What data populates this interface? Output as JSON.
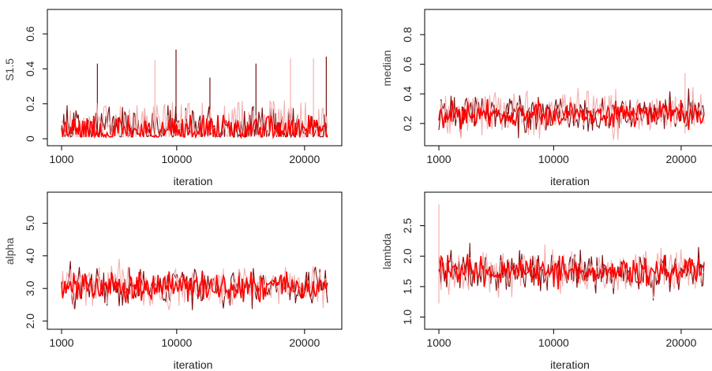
{
  "colors": {
    "chain_dark": "#7a1010",
    "chain_red": "#ff0000",
    "chain_light": "#f4b0b0",
    "frame": "#000000"
  },
  "chart_data": [
    {
      "type": "line",
      "ylabel": "S1.5",
      "xlabel": "iteration",
      "xlim": [
        1000,
        21800
      ],
      "ylim": [
        -0.04,
        0.74
      ],
      "xticks": [
        1000,
        10000,
        20000
      ],
      "xtick_labels": [
        "1000",
        "10000",
        "20000"
      ],
      "yticks": [
        0,
        0.2,
        0.4,
        0.6
      ],
      "ytick_labels": [
        "0",
        "0.2",
        "0.4",
        "0.6"
      ],
      "series": [
        {
          "color": "#7a1010",
          "trace": {
            "center": 0.06,
            "spread": 0.07,
            "floor": 0.01,
            "ceiling": 0.51,
            "skew": true
          },
          "spikes": [
            [
              3800,
              0.43
            ],
            [
              9950,
              0.51
            ],
            [
              16200,
              0.43
            ],
            [
              21700,
              0.47
            ],
            [
              12600,
              0.35
            ]
          ]
        },
        {
          "color": "#f4b0b0",
          "trace": {
            "center": 0.08,
            "spread": 0.08,
            "floor": 0.01,
            "ceiling": 0.5,
            "skew": true
          },
          "spikes": [
            [
              8300,
              0.45
            ],
            [
              18900,
              0.46
            ],
            [
              20700,
              0.46
            ]
          ]
        },
        {
          "color": "#ff0000",
          "trace": {
            "center": 0.05,
            "spread": 0.05,
            "floor": 0.01,
            "ceiling": 0.3,
            "skew": true
          },
          "spikes": []
        }
      ]
    },
    {
      "type": "line",
      "ylabel": "median",
      "xlabel": "iteration",
      "xlim": [
        1000,
        21800
      ],
      "ylim": [
        0.05,
        0.97
      ],
      "xticks": [
        1000,
        10000,
        20000
      ],
      "xtick_labels": [
        "1000",
        "10000",
        "20000"
      ],
      "yticks": [
        0.2,
        0.4,
        0.6,
        0.8
      ],
      "ytick_labels": [
        "0.2",
        "0.4",
        "0.6",
        "0.8"
      ],
      "series": [
        {
          "color": "#7a1010",
          "trace": {
            "center": 0.27,
            "spread": 0.09,
            "floor": 0.09,
            "ceiling": 0.5,
            "skew": false
          },
          "spikes": []
        },
        {
          "color": "#f4b0b0",
          "trace": {
            "center": 0.27,
            "spread": 0.1,
            "floor": 0.09,
            "ceiling": 0.55,
            "skew": false
          },
          "spikes": [
            [
              20300,
              0.54
            ]
          ]
        },
        {
          "color": "#ff0000",
          "trace": {
            "center": 0.26,
            "spread": 0.06,
            "floor": 0.13,
            "ceiling": 0.42,
            "skew": false
          },
          "spikes": []
        }
      ]
    },
    {
      "type": "line",
      "ylabel": "alpha",
      "xlabel": "iteration",
      "xlim": [
        1000,
        21800
      ],
      "ylim": [
        1.75,
        5.95
      ],
      "xticks": [
        1000,
        10000,
        20000
      ],
      "xtick_labels": [
        "1000",
        "10000",
        "20000"
      ],
      "yticks": [
        2.0,
        3.0,
        4.0,
        5.0
      ],
      "ytick_labels": [
        "2.0",
        "3.0",
        "4.0",
        "5.0"
      ],
      "series": [
        {
          "color": "#7a1010",
          "trace": {
            "center": 3.05,
            "spread": 0.42,
            "floor": 2.2,
            "ceiling": 4.2,
            "skew": false
          },
          "spikes": []
        },
        {
          "color": "#f4b0b0",
          "trace": {
            "center": 3.05,
            "spread": 0.45,
            "floor": 2.2,
            "ceiling": 4.0,
            "skew": false
          },
          "spikes": []
        },
        {
          "color": "#ff0000",
          "trace": {
            "center": 3.05,
            "spread": 0.3,
            "floor": 2.5,
            "ceiling": 3.6,
            "skew": false
          },
          "spikes": []
        }
      ]
    },
    {
      "type": "line",
      "ylabel": "lambda",
      "xlabel": "iteration",
      "xlim": [
        1000,
        21800
      ],
      "ylim": [
        0.8,
        3.05
      ],
      "xticks": [
        1000,
        10000,
        20000
      ],
      "xtick_labels": [
        "1000",
        "10000",
        "20000"
      ],
      "yticks": [
        1.0,
        1.5,
        2.0,
        2.5
      ],
      "ytick_labels": [
        "1.0",
        "1.5",
        "2.0",
        "2.5"
      ],
      "series": [
        {
          "color": "#7a1010",
          "trace": {
            "center": 1.75,
            "spread": 0.24,
            "floor": 1.15,
            "ceiling": 2.5,
            "skew": false
          },
          "spikes": []
        },
        {
          "color": "#f4b0b0",
          "trace": {
            "center": 1.75,
            "spread": 0.26,
            "floor": 1.0,
            "ceiling": 2.9,
            "skew": false
          },
          "spikes": [
            [
              1000,
              2.85
            ]
          ]
        },
        {
          "color": "#ff0000",
          "trace": {
            "center": 1.75,
            "spread": 0.16,
            "floor": 1.4,
            "ceiling": 2.15,
            "skew": false
          },
          "spikes": []
        }
      ]
    }
  ]
}
